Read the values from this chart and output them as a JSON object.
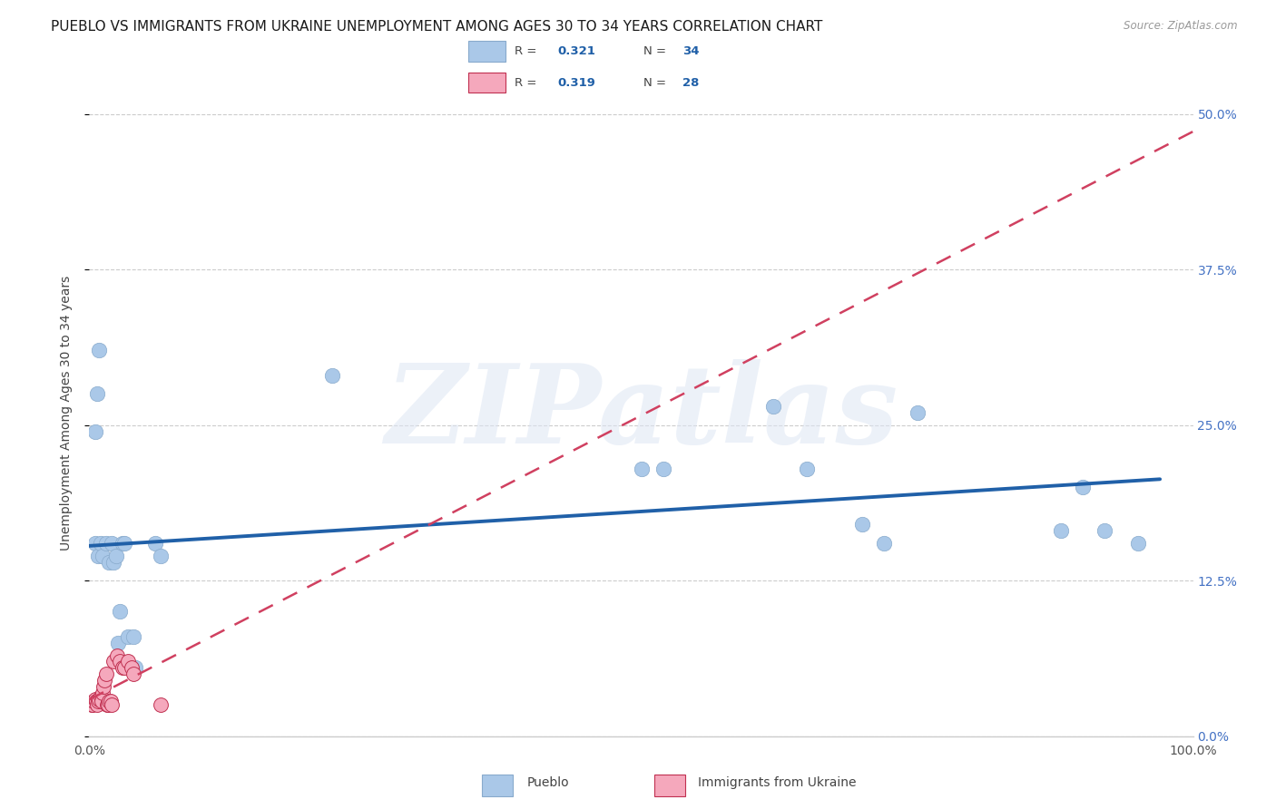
{
  "title": "PUEBLO VS IMMIGRANTS FROM UKRAINE UNEMPLOYMENT AMONG AGES 30 TO 34 YEARS CORRELATION CHART",
  "source": "Source: ZipAtlas.com",
  "ylabel": "Unemployment Among Ages 30 to 34 years",
  "xlim": [
    0.0,
    1.0
  ],
  "ylim": [
    0.0,
    0.52
  ],
  "yticks": [
    0.0,
    0.125,
    0.25,
    0.375,
    0.5
  ],
  "ytick_labels": [
    "0.0%",
    "12.5%",
    "25.0%",
    "37.5%",
    "50.0%"
  ],
  "xticks": [
    0.0,
    0.25,
    0.5,
    0.75,
    1.0
  ],
  "background_color": "#ffffff",
  "watermark": "ZIPatlas",
  "legend_r1": "0.321",
  "legend_n1": "34",
  "legend_r2": "0.319",
  "legend_n2": "28",
  "pueblo_color": "#aac8e8",
  "ukraine_color": "#f5a8bc",
  "pueblo_line_color": "#2060a8",
  "ukraine_line_color": "#d04060",
  "pueblo_edge_color": "#88aacc",
  "ukraine_edge_color": "#c03050",
  "pueblo_x": [
    0.005,
    0.008,
    0.01,
    0.012,
    0.015,
    0.018,
    0.02,
    0.022,
    0.024,
    0.026,
    0.028,
    0.03,
    0.032,
    0.035,
    0.038,
    0.04,
    0.042,
    0.06,
    0.065,
    0.005,
    0.007,
    0.009,
    0.22,
    0.5,
    0.52,
    0.62,
    0.65,
    0.7,
    0.72,
    0.75,
    0.88,
    0.9,
    0.92,
    0.95
  ],
  "pueblo_y": [
    0.155,
    0.145,
    0.155,
    0.145,
    0.155,
    0.14,
    0.155,
    0.14,
    0.145,
    0.075,
    0.1,
    0.155,
    0.155,
    0.08,
    0.055,
    0.08,
    0.055,
    0.155,
    0.145,
    0.245,
    0.275,
    0.31,
    0.29,
    0.215,
    0.215,
    0.265,
    0.215,
    0.17,
    0.155,
    0.26,
    0.165,
    0.2,
    0.165,
    0.155
  ],
  "ukraine_x": [
    0.002,
    0.003,
    0.004,
    0.005,
    0.006,
    0.007,
    0.008,
    0.009,
    0.01,
    0.011,
    0.012,
    0.013,
    0.014,
    0.015,
    0.016,
    0.017,
    0.018,
    0.019,
    0.02,
    0.022,
    0.025,
    0.028,
    0.03,
    0.032,
    0.035,
    0.038,
    0.04,
    0.065
  ],
  "ukraine_y": [
    0.025,
    0.025,
    0.028,
    0.03,
    0.028,
    0.025,
    0.028,
    0.03,
    0.032,
    0.028,
    0.035,
    0.04,
    0.045,
    0.05,
    0.025,
    0.025,
    0.028,
    0.028,
    0.025,
    0.06,
    0.065,
    0.06,
    0.055,
    0.055,
    0.06,
    0.055,
    0.05,
    0.025
  ],
  "title_fontsize": 11,
  "axis_label_fontsize": 10,
  "tick_fontsize": 10,
  "right_ytick_color": "#4472c4",
  "grid_color": "#cccccc",
  "legend_bg": "#dce8f8"
}
